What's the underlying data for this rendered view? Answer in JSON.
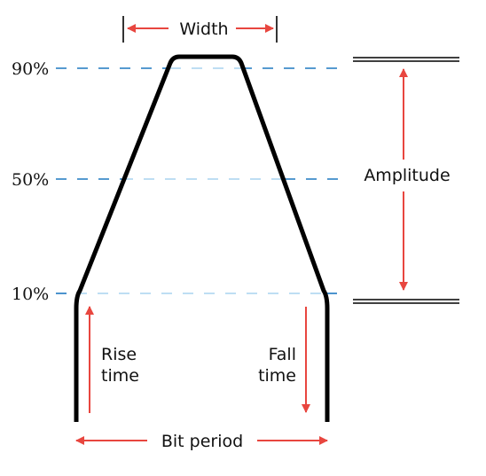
{
  "levels": {
    "p90": "90%",
    "p50": "50%",
    "p10": "10%"
  },
  "labels": {
    "width": "Width",
    "amplitude": "Amplitude",
    "rise_line1": "Rise",
    "rise_line2": "time",
    "fall_line1": "Fall",
    "fall_line2": "time",
    "bit_period": "Bit period"
  },
  "colors": {
    "pulse": "#000000",
    "arrow": "#e8463f",
    "dash_dark": "#1f78c1",
    "dash_light": "#a9d4ef",
    "text": "#111111"
  }
}
